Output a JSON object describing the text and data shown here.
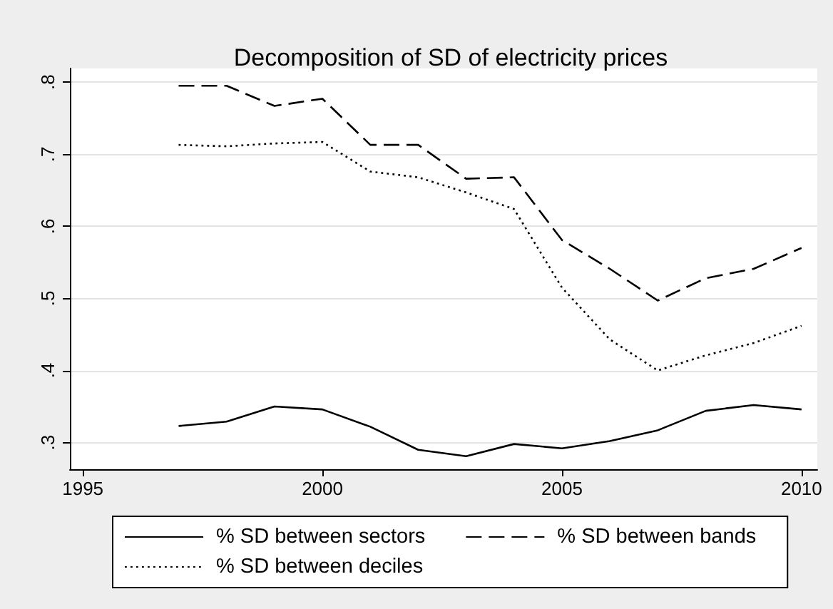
{
  "chart_data": {
    "type": "line",
    "title": "Decomposition of SD of electricity prices",
    "x": [
      1997,
      1998,
      1999,
      2000,
      2001,
      2002,
      2003,
      2004,
      2005,
      2006,
      2007,
      2008,
      2009,
      2010
    ],
    "series": [
      {
        "name": "% SD between sectors",
        "color": "#000000",
        "line_style": "solid",
        "values": [
          0.323,
          0.329,
          0.35,
          0.346,
          0.322,
          0.29,
          0.281,
          0.298,
          0.292,
          0.302,
          0.317,
          0.344,
          0.352,
          0.346
        ]
      },
      {
        "name": "% SD between bands",
        "color": "#000000",
        "line_style": "dashed",
        "values": [
          0.795,
          0.795,
          0.767,
          0.777,
          0.713,
          0.713,
          0.666,
          0.668,
          0.581,
          0.541,
          0.497,
          0.528,
          0.541,
          0.57
        ]
      },
      {
        "name": "% SD between deciles",
        "color": "#000000",
        "line_style": "dotted",
        "values": [
          0.713,
          0.711,
          0.715,
          0.717,
          0.676,
          0.668,
          0.647,
          0.624,
          0.515,
          0.443,
          0.4,
          0.421,
          0.438,
          0.462
        ]
      }
    ],
    "xlim": [
      1994.73,
      2010.33
    ],
    "xticks": [
      1995,
      2000,
      2005,
      2010
    ],
    "ylim": [
      0.263,
      0.819
    ],
    "yticks": [
      {
        "value": 0.3,
        "label": ".3"
      },
      {
        "value": 0.4,
        "label": ".4"
      },
      {
        "value": 0.5,
        "label": ".5"
      },
      {
        "value": 0.6,
        "label": ".6"
      },
      {
        "value": 0.7,
        "label": ".7"
      },
      {
        "value": 0.8,
        "label": ".8"
      }
    ],
    "grid": "y",
    "legend": "bottom",
    "marker": "none"
  }
}
